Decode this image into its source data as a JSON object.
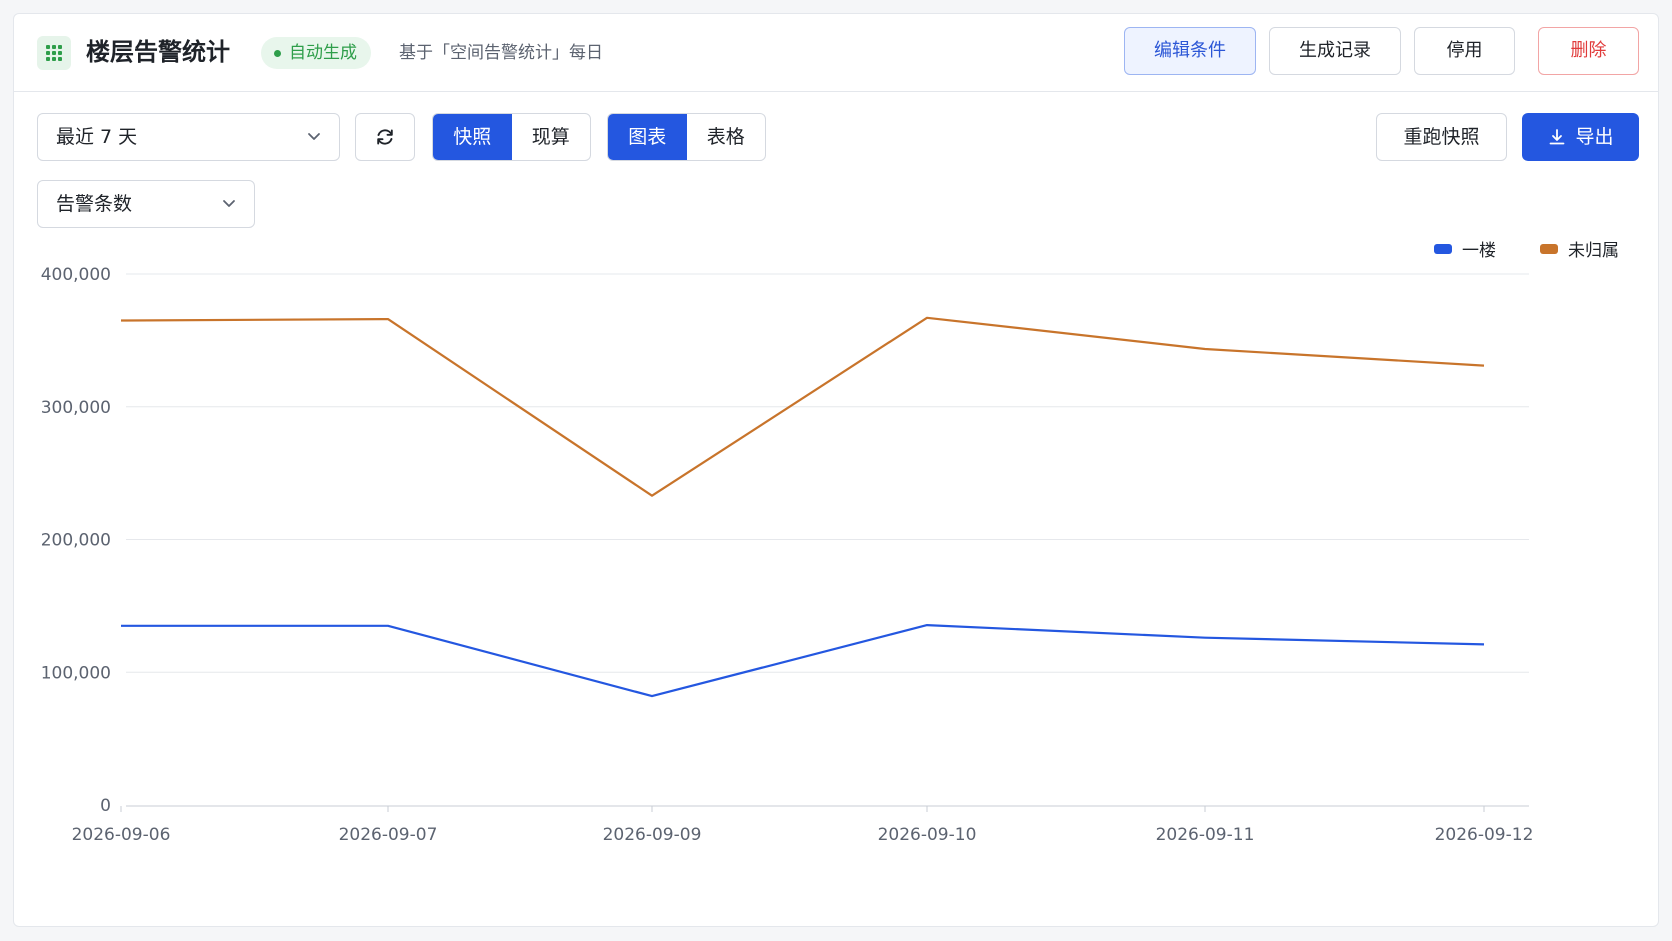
{
  "header": {
    "title": "楼层告警统计",
    "status_badge": "自动生成",
    "subtitle": "基于「空间告警统计」每日",
    "buttons": {
      "edit": "编辑条件",
      "history": "生成记录",
      "disable": "停用",
      "delete": "删除"
    }
  },
  "toolbar": {
    "range_select": "最近 7 天",
    "mode_options": [
      "快照",
      "现算"
    ],
    "mode_selected": "快照",
    "view_options": [
      "图表",
      "表格"
    ],
    "view_selected": "图表",
    "rerun": "重跑快照",
    "export": "导出",
    "metric_select": "告警条数"
  },
  "colors": {
    "accent": "#2457e0",
    "series_1": "#2457e0",
    "series_2": "#c8742b",
    "danger": "#e03b3b",
    "success": "#2e9e4a"
  },
  "icons": [
    "grid-app-icon",
    "chevron-down-icon",
    "refresh-icon",
    "download-icon"
  ],
  "chart_data": {
    "type": "line",
    "x": [
      "2026-09-06",
      "2026-09-07",
      "2026-09-09",
      "2026-09-10",
      "2026-09-11",
      "2026-09-12"
    ],
    "series": [
      {
        "name": "一楼",
        "color": "#2457e0",
        "values": [
          135000,
          135000,
          82000,
          135500,
          126000,
          121000
        ]
      },
      {
        "name": "未归属",
        "color": "#c8742b",
        "values": [
          365000,
          366000,
          233000,
          367000,
          343500,
          331000
        ]
      }
    ],
    "yticks": [
      "0",
      "100,000",
      "200,000",
      "300,000",
      "400,000"
    ],
    "ylim": [
      0,
      400000
    ],
    "grid": true,
    "legend_position": "top-right"
  }
}
